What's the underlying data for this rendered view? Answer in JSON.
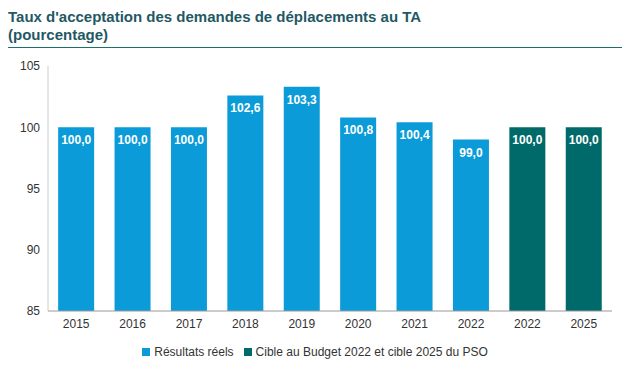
{
  "chart_data": {
    "type": "bar",
    "title": "Taux d'acceptation des demandes de déplacements au TA (pourcentage)",
    "categories": [
      "2015",
      "2016",
      "2017",
      "2018",
      "2019",
      "2020",
      "2021",
      "2022",
      "2022",
      "2025"
    ],
    "series": [
      {
        "name": "Résultats réels",
        "color": "#0a9bd8",
        "values": [
          100,
          100,
          100,
          102.6,
          103.3,
          100.8,
          100.4,
          99.0,
          null,
          null
        ],
        "value_labels": [
          "100,0",
          "100,0",
          "100,0",
          "102,6",
          "103,3",
          "100,8",
          "100,4",
          "99,0",
          null,
          null
        ]
      },
      {
        "name": "Cible au Budget 2022 et cible 2025 du PSO",
        "color": "#006a6a",
        "values": [
          null,
          null,
          null,
          null,
          null,
          null,
          null,
          null,
          100,
          100
        ],
        "value_labels": [
          null,
          null,
          null,
          null,
          null,
          null,
          null,
          null,
          "100,0",
          "100,0"
        ]
      }
    ],
    "ylim": [
      85,
      105
    ],
    "yticks": [
      85,
      90,
      95,
      100,
      105
    ],
    "grid": false,
    "legend": "bottom",
    "data_labels": true
  }
}
